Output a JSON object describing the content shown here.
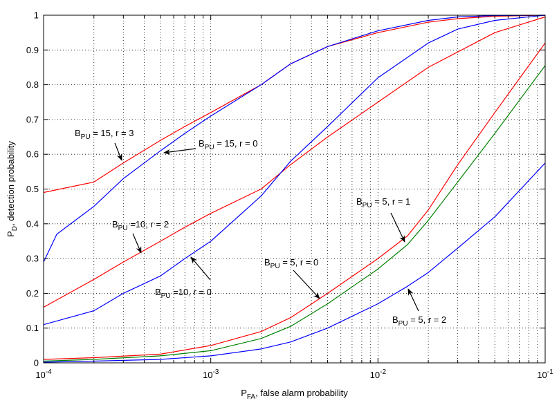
{
  "chart_data": {
    "type": "line",
    "xscale": "log",
    "xlim": [
      0.0001,
      0.1
    ],
    "ylim": [
      0,
      1
    ],
    "grid": true,
    "xlabel": {
      "main": "P",
      "sub": "FA",
      "rest": ", false alarm probability"
    },
    "ylabel": {
      "main": "P",
      "sub": "D",
      "rest": ", detection probability"
    },
    "x_ticks": [
      {
        "value": 0.0001,
        "base": "10",
        "exp": "-4"
      },
      {
        "value": 0.001,
        "base": "10",
        "exp": "-3"
      },
      {
        "value": 0.01,
        "base": "10",
        "exp": "-2"
      },
      {
        "value": 0.1,
        "base": "10",
        "exp": "-1"
      }
    ],
    "y_ticks": [
      {
        "value": 0,
        "label": "0"
      },
      {
        "value": 0.1,
        "label": "0.1"
      },
      {
        "value": 0.2,
        "label": "0.2"
      },
      {
        "value": 0.3,
        "label": "0.3"
      },
      {
        "value": 0.4,
        "label": "0.4"
      },
      {
        "value": 0.5,
        "label": "0.5"
      },
      {
        "value": 0.6,
        "label": "0.6"
      },
      {
        "value": 0.7,
        "label": "0.7"
      },
      {
        "value": 0.8,
        "label": "0.8"
      },
      {
        "value": 0.9,
        "label": "0.9"
      },
      {
        "value": 1,
        "label": "1"
      }
    ],
    "series": [
      {
        "color": "#ff0000",
        "x": [
          0.0001,
          0.0002,
          0.0003,
          0.0005,
          0.0007,
          0.001,
          0.002,
          0.003,
          0.005,
          0.01,
          0.02,
          0.03,
          0.05,
          0.1
        ],
        "y": [
          0.49,
          0.52,
          0.575,
          0.64,
          0.68,
          0.72,
          0.8,
          0.86,
          0.91,
          0.95,
          0.98,
          0.99,
          0.997,
          1.0
        ]
      },
      {
        "color": "#0000ff",
        "x": [
          0.0001,
          0.00012,
          0.0002,
          0.0003,
          0.0005,
          0.0007,
          0.001,
          0.002,
          0.003,
          0.005,
          0.01,
          0.02,
          0.03,
          0.05,
          0.1
        ],
        "y": [
          0.29,
          0.37,
          0.45,
          0.53,
          0.61,
          0.66,
          0.71,
          0.8,
          0.86,
          0.91,
          0.955,
          0.985,
          0.995,
          0.999,
          1.0
        ]
      },
      {
        "color": "#ff0000",
        "x": [
          0.0001,
          0.0002,
          0.0003,
          0.0005,
          0.0007,
          0.001,
          0.002,
          0.003,
          0.005,
          0.01,
          0.02,
          0.05,
          0.1
        ],
        "y": [
          0.16,
          0.24,
          0.29,
          0.35,
          0.39,
          0.43,
          0.5,
          0.57,
          0.65,
          0.75,
          0.85,
          0.95,
          0.995
        ]
      },
      {
        "color": "#0000ff",
        "x": [
          0.0001,
          0.0002,
          0.0003,
          0.0005,
          0.0007,
          0.001,
          0.002,
          0.003,
          0.005,
          0.01,
          0.02,
          0.03,
          0.05,
          0.1
        ],
        "y": [
          0.11,
          0.15,
          0.2,
          0.25,
          0.3,
          0.35,
          0.48,
          0.58,
          0.68,
          0.82,
          0.92,
          0.96,
          0.985,
          1.0
        ]
      },
      {
        "color": "#ff0000",
        "x": [
          0.0001,
          0.0002,
          0.0005,
          0.001,
          0.002,
          0.003,
          0.005,
          0.01,
          0.015,
          0.02,
          0.03,
          0.05,
          0.1
        ],
        "y": [
          0.01,
          0.015,
          0.025,
          0.05,
          0.09,
          0.13,
          0.2,
          0.3,
          0.365,
          0.44,
          0.57,
          0.72,
          0.92
        ]
      },
      {
        "color": "#008000",
        "x": [
          0.0001,
          0.0002,
          0.0005,
          0.001,
          0.002,
          0.003,
          0.005,
          0.01,
          0.015,
          0.02,
          0.03,
          0.05,
          0.1
        ],
        "y": [
          0.005,
          0.01,
          0.02,
          0.035,
          0.07,
          0.105,
          0.17,
          0.27,
          0.34,
          0.41,
          0.52,
          0.66,
          0.855
        ]
      },
      {
        "color": "#0000ff",
        "x": [
          0.0001,
          0.0002,
          0.0005,
          0.001,
          0.002,
          0.003,
          0.005,
          0.01,
          0.015,
          0.02,
          0.03,
          0.05,
          0.1
        ],
        "y": [
          0.002,
          0.005,
          0.01,
          0.02,
          0.04,
          0.06,
          0.1,
          0.17,
          0.22,
          0.26,
          0.33,
          0.42,
          0.575
        ]
      }
    ],
    "annotations": [
      {
        "pre": "B",
        "sub": "PU",
        "post": " = 15, r = 3",
        "target": [
          0.00028,
          0.575
        ]
      },
      {
        "pre": "B",
        "sub": "PU",
        "post": " = 15, r = 0",
        "target": [
          0.0005,
          0.61
        ]
      },
      {
        "pre": "B",
        "sub": "PU",
        "post": " =10, r = 2",
        "target": [
          0.00035,
          0.3
        ]
      },
      {
        "pre": "B",
        "sub": "PU",
        "post": " =10, r = 0",
        "target": [
          0.00075,
          0.3
        ]
      },
      {
        "pre": "B",
        "sub": "PU",
        "post": " = 5, r = 0",
        "target": [
          0.0045,
          0.185
        ]
      },
      {
        "pre": "B",
        "sub": "PU",
        "post": " = 5, r = 1",
        "target": [
          0.014,
          0.345
        ]
      },
      {
        "pre": "B",
        "sub": "PU",
        "post": " = 5, r = 2",
        "target": [
          0.015,
          0.215
        ]
      }
    ]
  }
}
